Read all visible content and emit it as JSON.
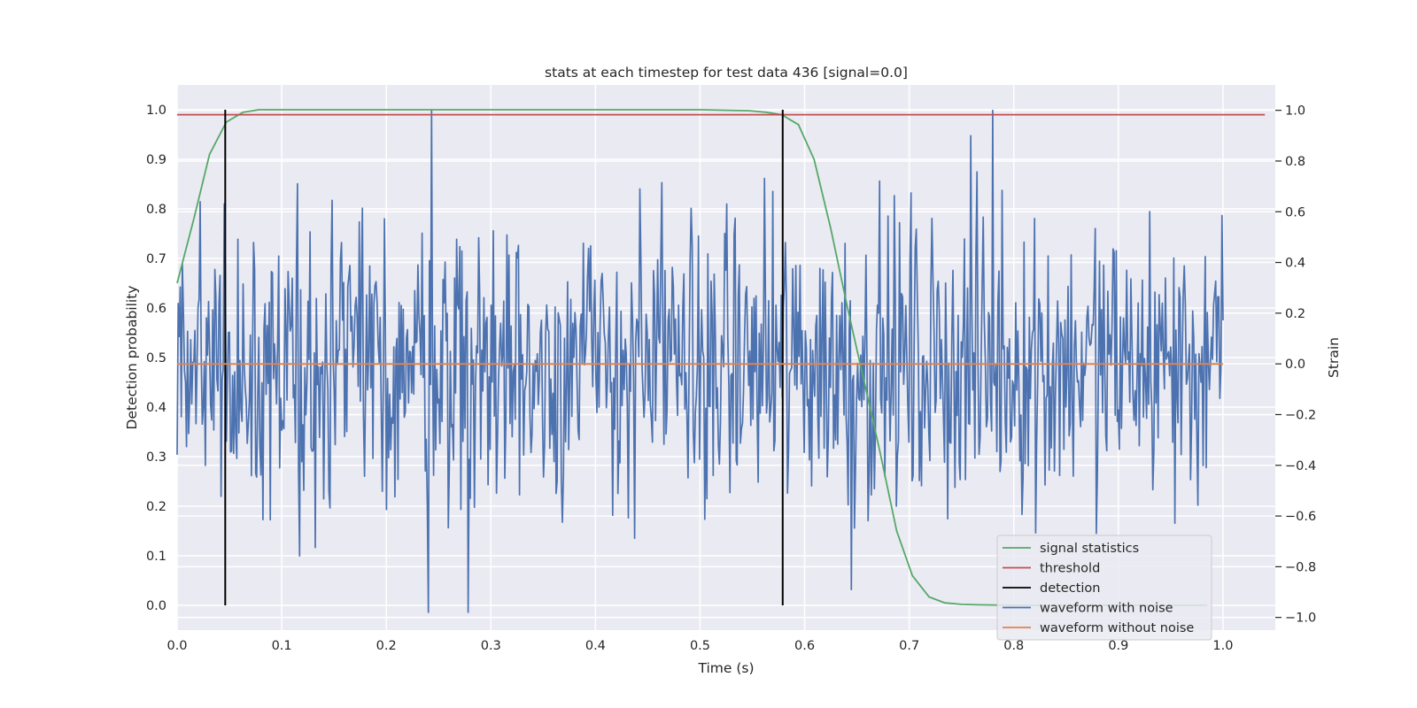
{
  "chart_data": {
    "type": "line",
    "title": "stats at each timestep for test data 436 [signal=0.0]",
    "xlabel": "Time (s)",
    "ylabel": "Detection probability",
    "y2label": "Strain",
    "xlim": [
      0.0,
      1.05
    ],
    "ylim": [
      -0.05,
      1.05
    ],
    "y2lim": [
      -1.05,
      1.1
    ],
    "xticks": [
      "0.0",
      "0.1",
      "0.2",
      "0.3",
      "0.4",
      "0.5",
      "0.6",
      "0.7",
      "0.8",
      "0.9",
      "1.0"
    ],
    "yticks": [
      "0.0",
      "0.1",
      "0.2",
      "0.3",
      "0.4",
      "0.5",
      "0.6",
      "0.7",
      "0.8",
      "0.9",
      "1.0"
    ],
    "y2ticks": [
      "−1.0",
      "−0.8",
      "−0.6",
      "−0.4",
      "−0.2",
      "0.0",
      "0.2",
      "0.4",
      "0.6",
      "0.8",
      "1.0"
    ],
    "grid": true,
    "legend_position": "lower-right",
    "colors": {
      "signal_statistics": "#55a868",
      "threshold": "#c44e52",
      "detection": "#000000",
      "waveform_with_noise": "#4c72b0",
      "waveform_without_noise": "#dd8452",
      "plot_background": "#eaeaf2",
      "grid": "#ffffff"
    },
    "series": [
      {
        "name": "signal statistics",
        "axis": "left",
        "x": [
          0.0,
          0.016,
          0.031,
          0.047,
          0.063,
          0.078,
          0.094,
          0.109,
          0.125,
          0.2,
          0.3,
          0.4,
          0.5,
          0.547,
          0.563,
          0.578,
          0.594,
          0.609,
          0.625,
          0.641,
          0.656,
          0.672,
          0.688,
          0.703,
          0.719,
          0.734,
          0.75,
          0.766,
          0.8,
          0.9,
          0.985
        ],
        "values": [
          0.65,
          0.78,
          0.91,
          0.975,
          0.995,
          1.0,
          1.0,
          1.0,
          1.0,
          1.0,
          1.0,
          1.0,
          1.0,
          0.998,
          0.995,
          0.99,
          0.97,
          0.9,
          0.76,
          0.6,
          0.46,
          0.31,
          0.15,
          0.06,
          0.017,
          0.005,
          0.002,
          0.001,
          0.0,
          0.0,
          0.0
        ]
      },
      {
        "name": "threshold",
        "axis": "left",
        "x": [
          0.0,
          1.04
        ],
        "values": [
          0.99,
          0.99
        ]
      },
      {
        "name": "detection",
        "axis": "left",
        "x": [
          0.046,
          0.579
        ],
        "values": [
          1.0,
          1.0
        ]
      },
      {
        "name": "waveform with noise",
        "axis": "right",
        "x_range": [
          0.0,
          1.0
        ],
        "n_points": 1000,
        "amplitude_range": [
          -1.0,
          1.0
        ],
        "peaks": [
          [
            0.243,
            1.0
          ],
          [
            0.78,
            1.0
          ],
          [
            0.759,
            0.9
          ],
          [
            0.24,
            -0.98
          ],
          [
            0.278,
            -0.98
          ],
          [
            0.645,
            -0.89
          ]
        ]
      },
      {
        "name": "waveform without noise",
        "axis": "right",
        "x": [
          0.0,
          1.0
        ],
        "values": [
          0.0,
          0.0
        ]
      }
    ],
    "legend": [
      "signal statistics",
      "threshold",
      "detection",
      "waveform with noise",
      "waveform without noise"
    ]
  }
}
